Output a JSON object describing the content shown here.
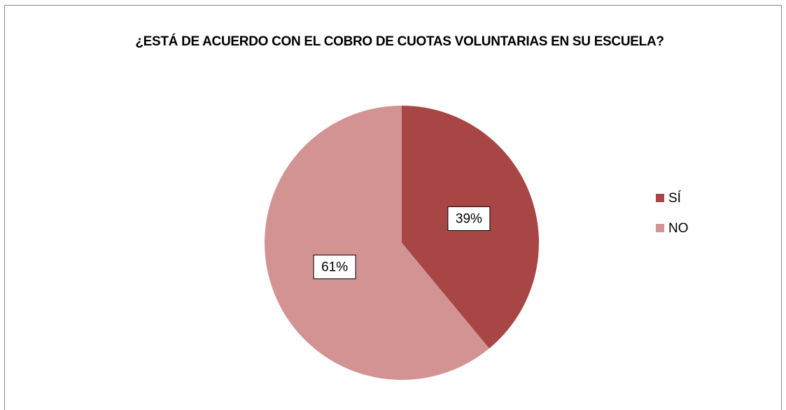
{
  "chart_data": {
    "type": "pie",
    "title": "¿ESTÁ DE ACUERDO CON EL COBRO DE CUOTAS VOLUNTARIAS EN SU ESCUELA?",
    "categories": [
      "SÍ",
      "NO"
    ],
    "values": [
      39,
      61
    ],
    "value_labels": [
      "39%",
      "61%"
    ],
    "colors": [
      "#a84646",
      "#d29392"
    ],
    "legend": "right"
  }
}
